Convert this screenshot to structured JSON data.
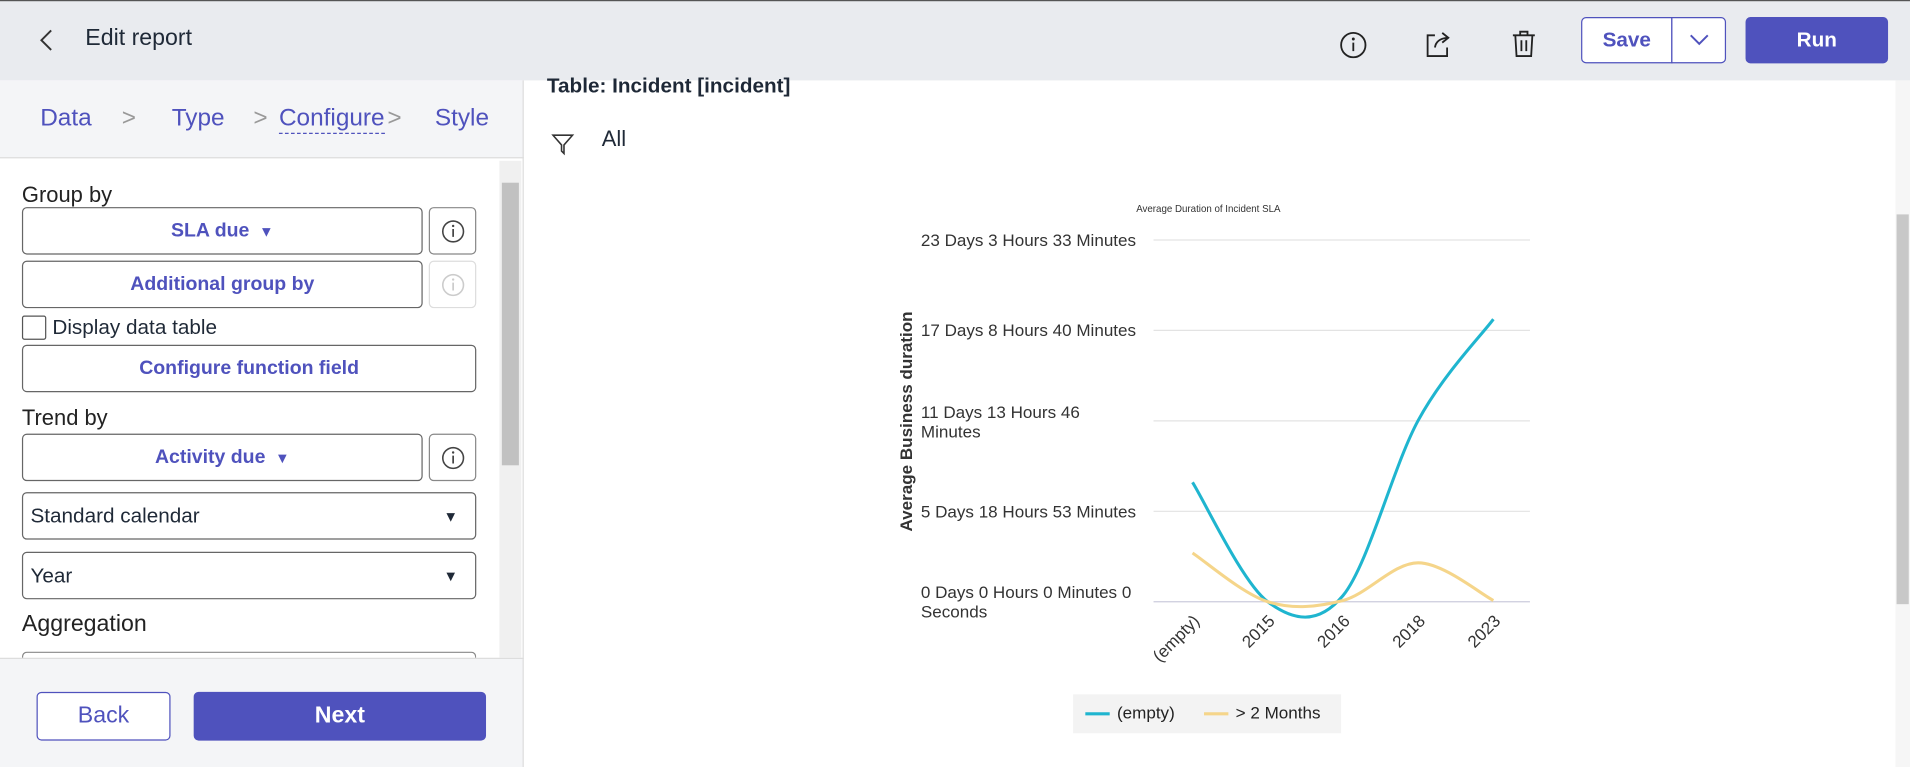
{
  "header": {
    "title": "Edit report",
    "save": "Save",
    "run": "Run"
  },
  "steps": [
    "Data",
    "Type",
    "Configure",
    "Style"
  ],
  "form": {
    "group_by_label": "Group by",
    "group_by": "SLA due",
    "additional_group_by": "Additional group by",
    "display_data_table": "Display data table",
    "configure_function_field": "Configure function field",
    "trend_by_label": "Trend by",
    "trend_by": "Activity due",
    "calendar": "Standard calendar",
    "period": "Year",
    "aggregation_label": "Aggregation"
  },
  "footer": {
    "back": "Back",
    "next": "Next"
  },
  "content": {
    "table": "Table: Incident [incident]",
    "filter": "All"
  },
  "chart_data": {
    "type": "line",
    "title": "Average Duration of Incident SLA",
    "y_label": "Average Business duration",
    "categories": [
      "(empty)",
      "2015",
      "2016",
      "2018",
      "2023"
    ],
    "series": [
      {
        "name": "(empty)",
        "color": "#1fb5cf",
        "values": [
          7.64,
          0,
          0.39,
          11.6,
          18.08
        ]
      },
      {
        "name": "> 2 Months",
        "color": "#f5d58a",
        "values": [
          3.12,
          0,
          0.08,
          2.49,
          0.08
        ]
      }
    ],
    "ylim": [
      0,
      23.148
    ],
    "yticks": [
      {
        "value": 0,
        "label": "0 Days 0 Hours 0 Minutes 0 Seconds"
      },
      {
        "value": 5.787,
        "label": "5 Days 18 Hours 53 Minutes"
      },
      {
        "value": 11.574,
        "label": "11 Days 13 Hours 46 Minutes"
      },
      {
        "value": 17.361,
        "label": "17 Days 8 Hours 40 Minutes"
      },
      {
        "value": 23.148,
        "label": "23 Days 3 Hours 33 Minutes"
      }
    ],
    "grid": true,
    "legend": "bottom"
  }
}
